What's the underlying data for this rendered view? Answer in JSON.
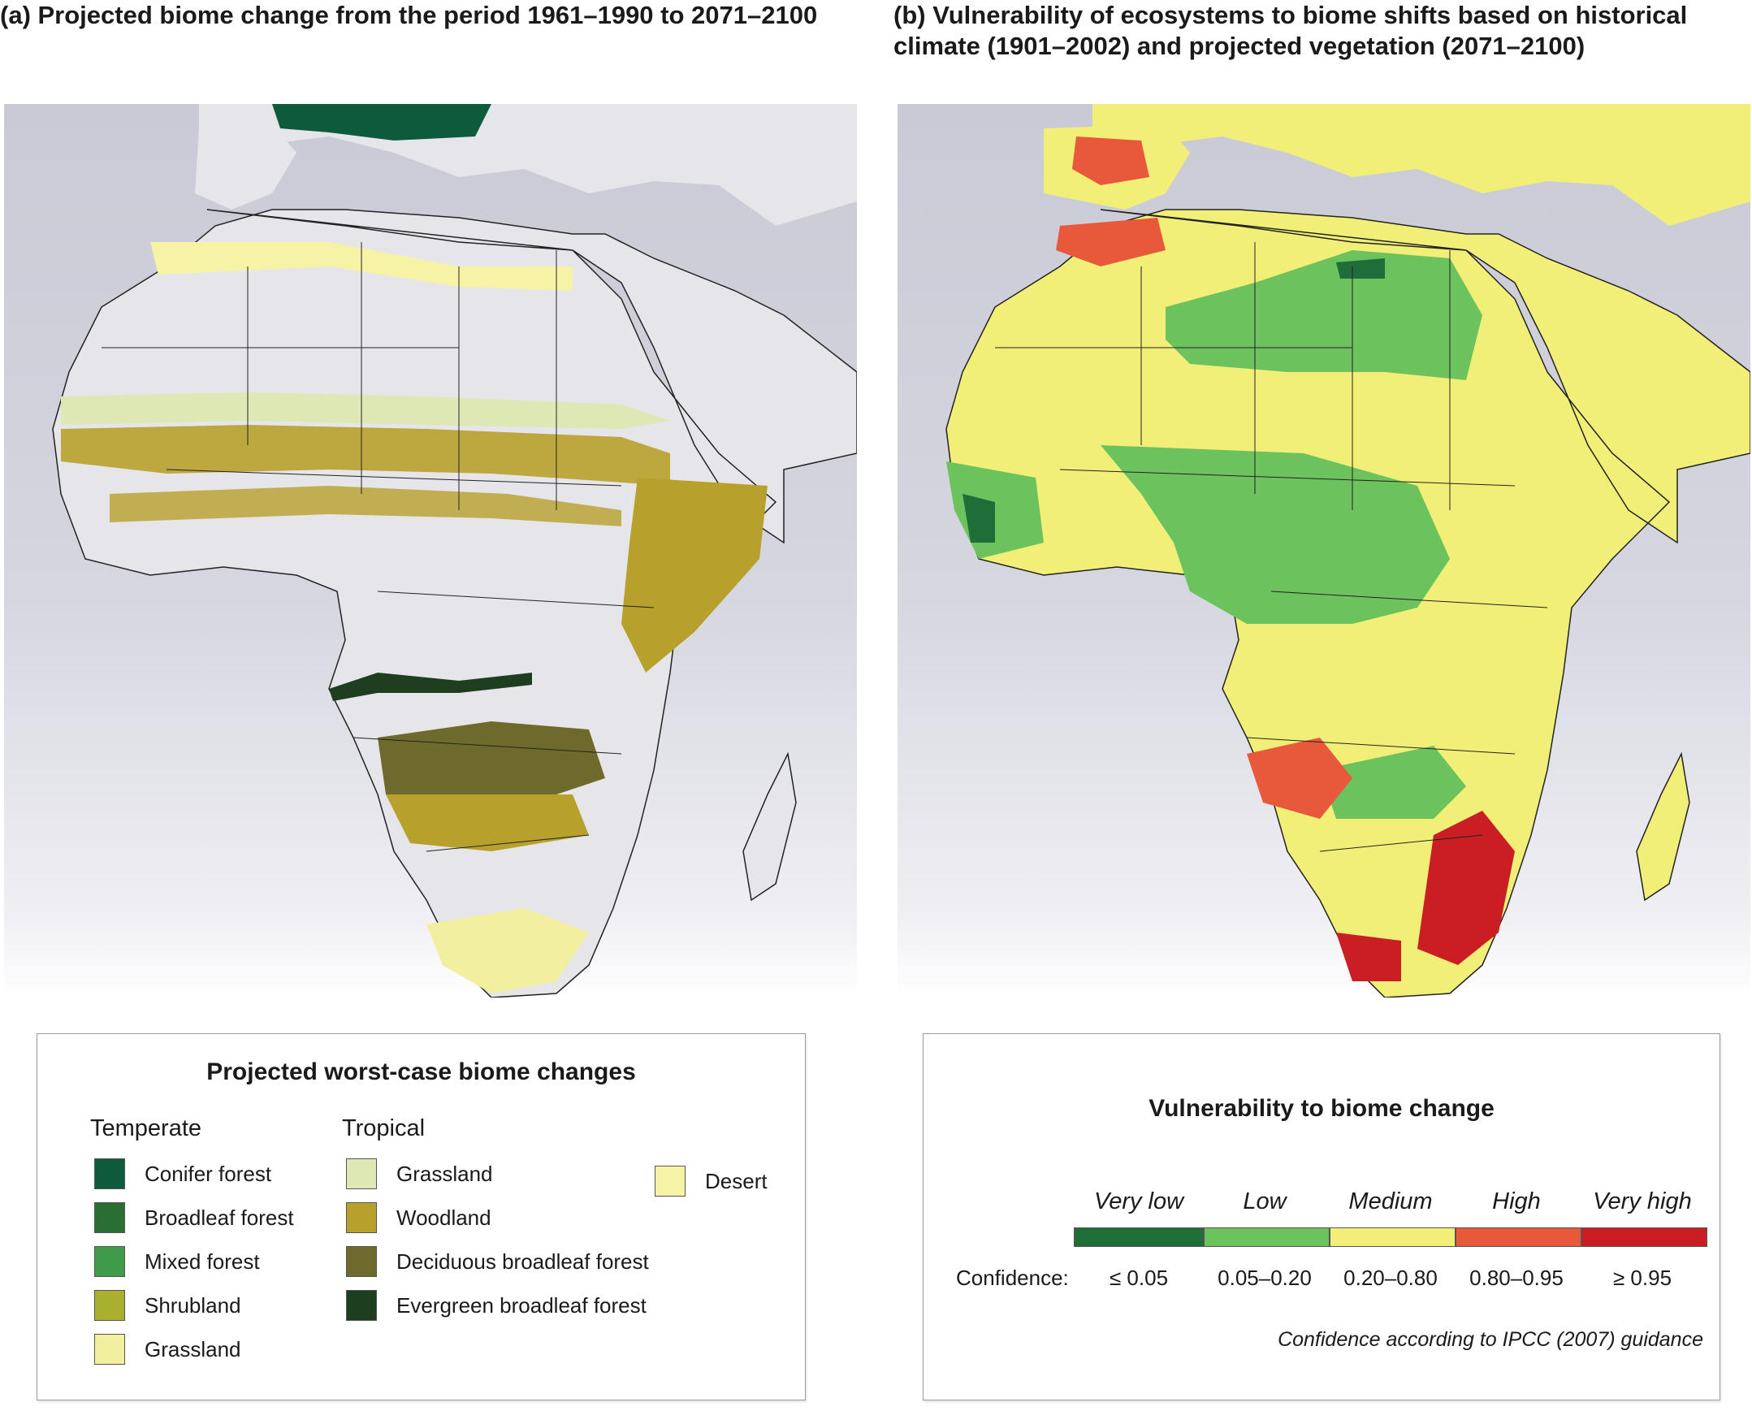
{
  "panel_a": {
    "title": "(a) Projected biome change from the period 1961–1990 to 2071–2100",
    "legend": {
      "title": "Projected worst-case biome changes",
      "groups": [
        {
          "heading": "Temperate",
          "items": [
            {
              "label": "Conifer forest",
              "color": "#0d5a3c"
            },
            {
              "label": "Broadleaf forest",
              "color": "#2b6e34"
            },
            {
              "label": "Mixed forest",
              "color": "#3f9a4a"
            },
            {
              "label": "Shrubland",
              "color": "#a9b030"
            },
            {
              "label": "Grassland",
              "color": "#f2ef9e"
            }
          ]
        },
        {
          "heading": "Tropical",
          "items": [
            {
              "label": "Grassland",
              "color": "#dde8b4"
            },
            {
              "label": "Woodland",
              "color": "#b8a02c"
            },
            {
              "label": "Deciduous broadleaf forest",
              "color": "#6e6a2c"
            },
            {
              "label": "Evergreen broadleaf forest",
              "color": "#1d3f1f"
            }
          ]
        },
        {
          "heading": "",
          "items": [
            {
              "label": "Desert",
              "color": "#f6f2a6"
            }
          ]
        }
      ]
    }
  },
  "panel_b": {
    "title": "(b) Vulnerability of ecosystems to biome shifts based on historical climate (1901–2002) and projected vegetation (2071–2100)",
    "legend": {
      "title": "Vulnerability to biome change",
      "confidence_label": "Confidence:",
      "classes": [
        {
          "label": "Very low",
          "range": "≤ 0.05",
          "color": "#1f6e3a"
        },
        {
          "label": "Low",
          "range": "0.05–0.20",
          "color": "#6cc25c"
        },
        {
          "label": "Medium",
          "range": "0.20–0.80",
          "color": "#f2ef78"
        },
        {
          "label": "High",
          "range": "0.80–0.95",
          "color": "#e8583a"
        },
        {
          "label": "Very high",
          "range": "≥ 0.95",
          "color": "#c81e24"
        }
      ],
      "note": "Confidence according to IPCC (2007) guidance"
    }
  },
  "map_colors": {
    "sea": "#cfcfdb",
    "land_a": "#e6e6ea",
    "land_b": "#f2ef78",
    "border": "#222222"
  }
}
